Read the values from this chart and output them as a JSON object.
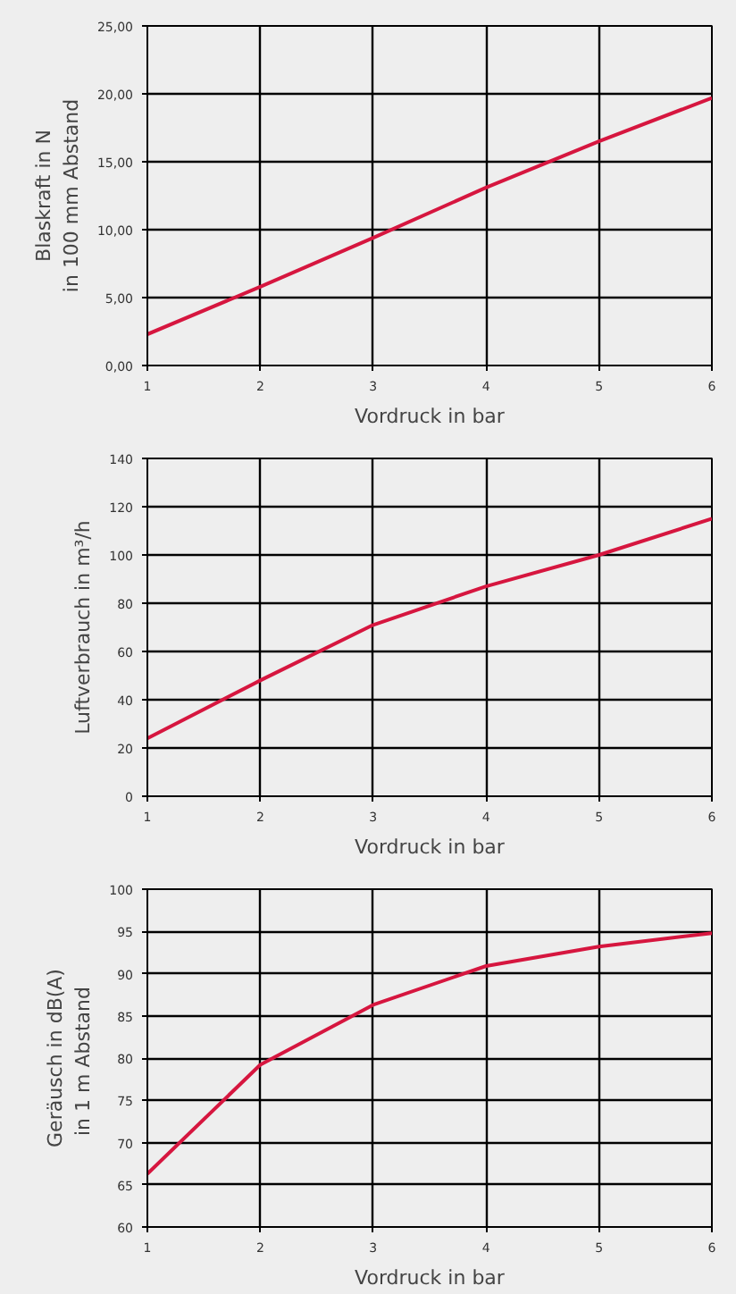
{
  "chart_data": [
    {
      "type": "line",
      "xlabel": "Vordruck in bar",
      "ylabel": "Blaskraft in N\nin 100 mm Abstand",
      "x": [
        1,
        2,
        3,
        4,
        5,
        6
      ],
      "series": [
        {
          "color": "#d6163f",
          "values": [
            2.3,
            5.8,
            9.4,
            13.1,
            16.5,
            19.7
          ]
        }
      ],
      "xlim": [
        1,
        6
      ],
      "xticks": [
        1,
        2,
        3,
        4,
        5,
        6
      ],
      "ylim": [
        0,
        25
      ],
      "yticks": [
        {
          "value": 0,
          "label": "0,00"
        },
        {
          "value": 5,
          "label": "5,00"
        },
        {
          "value": 10,
          "label": "10,00"
        },
        {
          "value": 15,
          "label": "15,00"
        },
        {
          "value": 20,
          "label": "20,00"
        },
        {
          "value": 25,
          "label": "25,00"
        }
      ],
      "grid": true,
      "marker": "none",
      "line_style": "solid"
    },
    {
      "type": "line",
      "xlabel": "Vordruck in bar",
      "ylabel": "Luftverbrauch in m³/h",
      "x": [
        1,
        2,
        3,
        4,
        5,
        6
      ],
      "series": [
        {
          "color": "#d6163f",
          "values": [
            24,
            48,
            71,
            87,
            100,
            115
          ]
        }
      ],
      "xlim": [
        1,
        6
      ],
      "xticks": [
        1,
        2,
        3,
        4,
        5,
        6
      ],
      "ylim": [
        0,
        140
      ],
      "yticks": [
        0,
        20,
        40,
        60,
        80,
        100,
        120,
        140
      ],
      "grid": true,
      "marker": "none",
      "line_style": "solid"
    },
    {
      "type": "line",
      "xlabel": "Vordruck in bar",
      "ylabel": "Geräusch in dB(A)\nin 1  m Abstand",
      "x": [
        1,
        2,
        3,
        4,
        5,
        6
      ],
      "series": [
        {
          "color": "#d6163f",
          "values": [
            66.3,
            79.2,
            86.3,
            90.9,
            93.2,
            94.8
          ]
        }
      ],
      "xlim": [
        1,
        6
      ],
      "xticks": [
        1,
        2,
        3,
        4,
        5,
        6
      ],
      "ylim": [
        60,
        100
      ],
      "yticks": [
        60,
        65,
        70,
        75,
        80,
        85,
        90,
        95,
        100
      ],
      "grid": true,
      "marker": "none",
      "line_style": "solid"
    }
  ]
}
